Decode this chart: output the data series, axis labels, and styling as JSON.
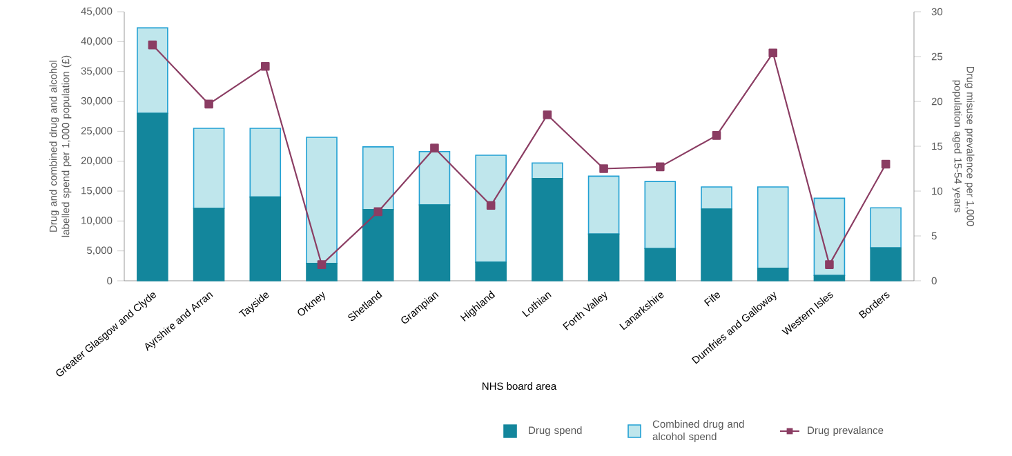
{
  "chart_data": {
    "type": "bar",
    "stacked": true,
    "xlabel": "NHS board area",
    "ylabel": "Drug and combined drug and alcohol labelled spend per 1,000 population (£)",
    "y2label": "Drug misuse prevalence per 1,000 population aged 15-54 years",
    "categories": [
      "Greater Glasgow and Clyde",
      "Ayrshire and Arran",
      "Tayside",
      "Orkney",
      "Shetland",
      "Grampian",
      "Highland",
      "Lothian",
      "Forth Valley",
      "Lanarkshire",
      "Fife",
      "Dumfries and Galloway",
      "Western Isles",
      "Borders"
    ],
    "series": [
      {
        "name": "Drug spend",
        "type": "bar",
        "color": "#13869c",
        "values": [
          28000,
          12100,
          14000,
          2900,
          11900,
          12700,
          3100,
          17100,
          7800,
          5400,
          12000,
          2100,
          900,
          5500
        ]
      },
      {
        "name": "Combined drug and alcohol spend",
        "type": "bar",
        "color": "#bfe6ec",
        "values": [
          14300,
          13400,
          11500,
          21100,
          10500,
          8900,
          17900,
          2600,
          9700,
          11200,
          3700,
          13600,
          12900,
          6700
        ]
      },
      {
        "name": "Drug prevalance",
        "type": "line",
        "axis": "y2",
        "color": "#8b3d63",
        "values": [
          26.3,
          19.7,
          23.9,
          1.8,
          7.7,
          14.8,
          8.4,
          18.5,
          12.5,
          12.7,
          16.2,
          25.4,
          1.8,
          13.0
        ]
      }
    ],
    "ylim": [
      0,
      45000
    ],
    "yticks": [
      0,
      {
        "value": 5000,
        "label": "5,000"
      },
      {
        "value": 10000,
        "label": "10,000"
      },
      {
        "value": 15000,
        "label": "15,000"
      },
      {
        "value": 20000,
        "label": "20,000"
      },
      {
        "value": 25000,
        "label": "25,000"
      },
      {
        "value": 30000,
        "label": "30,000"
      },
      {
        "value": 35000,
        "label": "35,000"
      },
      {
        "value": 40000,
        "label": "40,000"
      },
      {
        "value": 45000,
        "label": "45,000"
      }
    ],
    "y2lim": [
      0,
      30
    ],
    "y2ticks": [
      0,
      5,
      10,
      15,
      20,
      25,
      30
    ],
    "marker": "square",
    "line_style": "solid",
    "legend": "bottom right",
    "grid": false
  }
}
